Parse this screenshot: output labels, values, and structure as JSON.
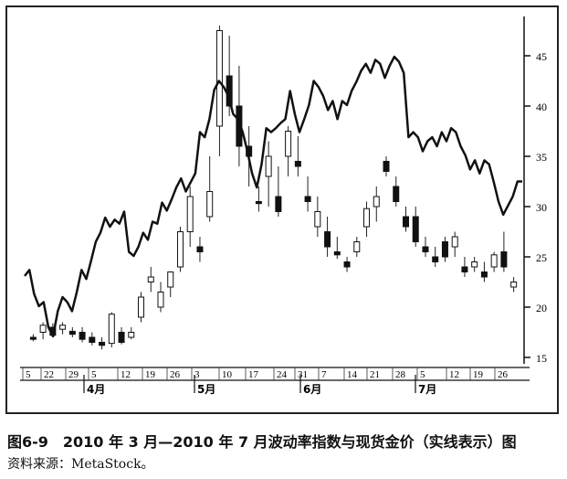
{
  "caption": "图6-9　2010 年 3 月—2010 年 7 月波动率指数与现货金价（实线表示）图",
  "source": "资料来源：MetaStock。",
  "chart_data": {
    "type": "line",
    "ylim": [
      15,
      48
    ],
    "y_ticks": [
      15,
      20,
      25,
      30,
      35,
      40,
      45
    ],
    "x_tick_labels": [
      "5",
      "22",
      "29",
      "5",
      "12",
      "19",
      "26",
      "3",
      "10",
      "17",
      "24",
      "31",
      "7",
      "14",
      "21",
      "28",
      "5",
      "12",
      "19",
      "26"
    ],
    "month_labels": [
      "4月",
      "5月",
      "6月",
      "7月"
    ],
    "grid": false,
    "series": [
      {
        "type": "line",
        "style": "solid",
        "values": [
          23.1,
          23.7,
          21.3,
          20.1,
          20.5,
          18.0,
          17.1,
          19.6,
          21.0,
          20.5,
          19.6,
          21.5,
          23.7,
          22.8,
          24.6,
          26.5,
          27.4,
          28.9,
          28.0,
          28.7,
          28.3,
          29.5,
          25.5,
          25.1,
          26.0,
          27.4,
          26.7,
          28.5,
          28.3,
          30.4,
          29.6,
          30.7,
          31.9,
          32.8,
          31.5,
          32.4,
          33.3,
          37.4,
          36.9,
          38.7,
          41.6,
          42.5,
          41.9,
          41.0,
          39.2,
          38.7,
          37.4,
          35.5,
          33.3,
          31.9,
          34.2,
          37.8,
          37.4,
          37.8,
          38.3,
          38.7,
          41.5,
          39.2,
          37.4,
          38.7,
          40.1,
          42.5,
          41.9,
          41.0,
          39.6,
          40.5,
          38.7,
          40.5,
          40.1,
          41.5,
          42.4,
          43.5,
          44.2,
          43.3,
          44.6,
          44.2,
          42.8,
          44.0,
          44.9,
          44.4,
          43.3,
          36.9,
          37.4,
          36.9,
          35.5,
          36.5,
          36.9,
          36.0,
          37.4,
          36.5,
          37.8,
          37.4,
          36.0,
          35.1,
          33.7,
          34.6,
          33.3,
          34.6,
          34.2,
          32.4,
          30.5,
          29.2,
          30.1,
          31.0,
          32.5,
          32.5
        ]
      },
      {
        "type": "candlestick",
        "ohlc": [
          [
            17,
            17.3,
            16.6,
            16.8
          ],
          [
            17.5,
            18.5,
            16.8,
            18.2
          ],
          [
            18,
            18.4,
            17,
            17.2
          ],
          [
            17.8,
            18.5,
            17.3,
            18.2
          ],
          [
            17.6,
            18,
            17,
            17.3
          ],
          [
            17.5,
            18,
            16.5,
            16.8
          ],
          [
            17,
            17.5,
            16.2,
            16.5
          ],
          [
            16.5,
            17,
            15.8,
            16.2
          ],
          [
            16.4,
            19.5,
            16,
            19.3
          ],
          [
            17.5,
            18,
            16.3,
            16.5
          ],
          [
            17,
            18,
            16.8,
            17.5
          ],
          [
            19,
            21.5,
            18.5,
            21
          ],
          [
            22.5,
            24,
            21.5,
            23
          ],
          [
            20,
            22.5,
            19.5,
            21.5
          ],
          [
            22,
            23.5,
            21,
            23.5
          ],
          [
            24,
            28,
            23.5,
            27.5
          ],
          [
            27.5,
            32,
            26,
            31
          ],
          [
            26,
            27,
            24.5,
            25.5
          ],
          [
            29,
            35,
            28.5,
            31.5
          ],
          [
            38,
            48,
            35,
            47.5
          ],
          [
            43,
            47,
            39,
            40
          ],
          [
            40,
            44,
            34,
            36
          ],
          [
            36,
            38,
            32,
            35
          ],
          [
            30.5,
            32,
            29.5,
            30.3
          ],
          [
            33,
            36.5,
            30,
            35
          ],
          [
            31,
            34,
            29,
            29.5
          ],
          [
            35,
            38,
            33,
            37.5
          ],
          [
            34.5,
            37,
            33,
            34
          ],
          [
            31,
            33,
            29.5,
            30.5
          ],
          [
            28,
            31,
            27,
            29.5
          ],
          [
            27.5,
            29,
            25,
            26
          ],
          [
            25.5,
            27,
            24.8,
            25.2
          ],
          [
            24.5,
            25,
            23.5,
            24
          ],
          [
            25.5,
            27,
            25,
            26.5
          ],
          [
            28,
            30.5,
            27,
            29.8
          ],
          [
            30,
            32,
            28.5,
            31
          ],
          [
            34.5,
            35,
            33,
            33.5
          ],
          [
            32,
            33,
            30,
            30.5
          ],
          [
            29,
            30,
            27.5,
            28
          ],
          [
            29,
            30,
            26,
            26.5
          ],
          [
            26,
            27,
            25,
            25.5
          ],
          [
            25,
            26,
            24,
            24.5
          ],
          [
            26.5,
            27,
            24.5,
            25
          ],
          [
            26,
            27.5,
            25,
            27
          ],
          [
            24,
            25,
            23,
            23.5
          ],
          [
            24,
            25,
            23.5,
            24.5
          ],
          [
            23.5,
            24.5,
            22.5,
            23
          ],
          [
            24,
            25.5,
            23.5,
            25.2
          ],
          [
            25.5,
            27.5,
            23.5,
            24
          ],
          [
            22,
            23,
            21.5,
            22.5
          ]
        ]
      }
    ]
  }
}
